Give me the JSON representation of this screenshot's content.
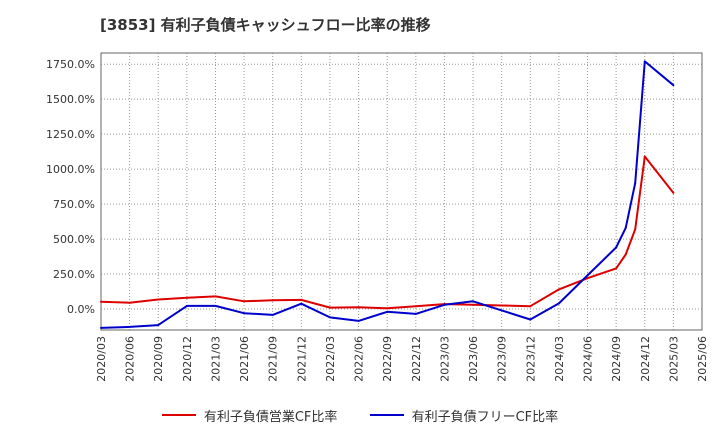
{
  "chart_data": {
    "type": "line",
    "title": "[3853]  有利子負債キャッシュフロー比率の推移",
    "xlabel": "",
    "ylabel": "",
    "ylim": [
      -150,
      1830
    ],
    "yticks": [
      0,
      250,
      500,
      750,
      1000,
      1250,
      1500,
      1750
    ],
    "ytick_labels": [
      "0.0%",
      "250.0%",
      "500.0%",
      "750.0%",
      "1000.0%",
      "1250.0%",
      "1500.0%",
      "1750.0%"
    ],
    "xtick_labels": [
      "2020/03",
      "2020/06",
      "2020/09",
      "2020/12",
      "2021/03",
      "2021/06",
      "2021/09",
      "2021/12",
      "2022/03",
      "2022/06",
      "2022/09",
      "2022/12",
      "2023/03",
      "2023/06",
      "2023/09",
      "2023/12",
      "2024/03",
      "2024/06",
      "2024/09",
      "2024/12",
      "2025/03",
      "2025/06"
    ],
    "grid": true,
    "legend_position": "bottom",
    "series": [
      {
        "name": "有利子負債営業CF比率",
        "color": "#dd0000",
        "points": [
          {
            "x": "2020/03",
            "y": 52
          },
          {
            "x": "2020/06",
            "y": 45
          },
          {
            "x": "2020/09",
            "y": 68
          },
          {
            "x": "2020/12",
            "y": 80
          },
          {
            "x": "2021/03",
            "y": 90
          },
          {
            "x": "2021/06",
            "y": 55
          },
          {
            "x": "2021/09",
            "y": 62
          },
          {
            "x": "2021/12",
            "y": 65
          },
          {
            "x": "2022/03",
            "y": 10
          },
          {
            "x": "2022/06",
            "y": 12
          },
          {
            "x": "2022/09",
            "y": 5
          },
          {
            "x": "2022/12",
            "y": 20
          },
          {
            "x": "2023/03",
            "y": 35
          },
          {
            "x": "2023/06",
            "y": 30
          },
          {
            "x": "2023/09",
            "y": 25
          },
          {
            "x": "2023/12",
            "y": 20
          },
          {
            "x": "2024/03",
            "y": 140
          },
          {
            "x": "2024/06",
            "y": 220
          },
          {
            "x": "2024/09",
            "y": 290
          },
          {
            "x": "2024/10",
            "y": 390
          },
          {
            "x": "2024/11",
            "y": 570
          },
          {
            "x": "2024/12",
            "y": 1090
          },
          {
            "x": "2025/03",
            "y": 830
          }
        ]
      },
      {
        "name": "有利子負債フリーCF比率",
        "color": "#0000cc",
        "points": [
          {
            "x": "2020/03",
            "y": -135
          },
          {
            "x": "2020/06",
            "y": -128
          },
          {
            "x": "2020/09",
            "y": -115
          },
          {
            "x": "2020/12",
            "y": 22
          },
          {
            "x": "2021/03",
            "y": 22
          },
          {
            "x": "2021/06",
            "y": -30
          },
          {
            "x": "2021/09",
            "y": -42
          },
          {
            "x": "2021/12",
            "y": 38
          },
          {
            "x": "2022/03",
            "y": -60
          },
          {
            "x": "2022/06",
            "y": -85
          },
          {
            "x": "2022/09",
            "y": -20
          },
          {
            "x": "2022/12",
            "y": -35
          },
          {
            "x": "2023/03",
            "y": 30
          },
          {
            "x": "2023/06",
            "y": 55
          },
          {
            "x": "2023/09",
            "y": -10
          },
          {
            "x": "2023/12",
            "y": -75
          },
          {
            "x": "2024/03",
            "y": 40
          },
          {
            "x": "2024/06",
            "y": 240
          },
          {
            "x": "2024/09",
            "y": 440
          },
          {
            "x": "2024/10",
            "y": 580
          },
          {
            "x": "2024/11",
            "y": 900
          },
          {
            "x": "2024/12",
            "y": 1770
          },
          {
            "x": "2025/03",
            "y": 1600
          }
        ]
      }
    ]
  }
}
